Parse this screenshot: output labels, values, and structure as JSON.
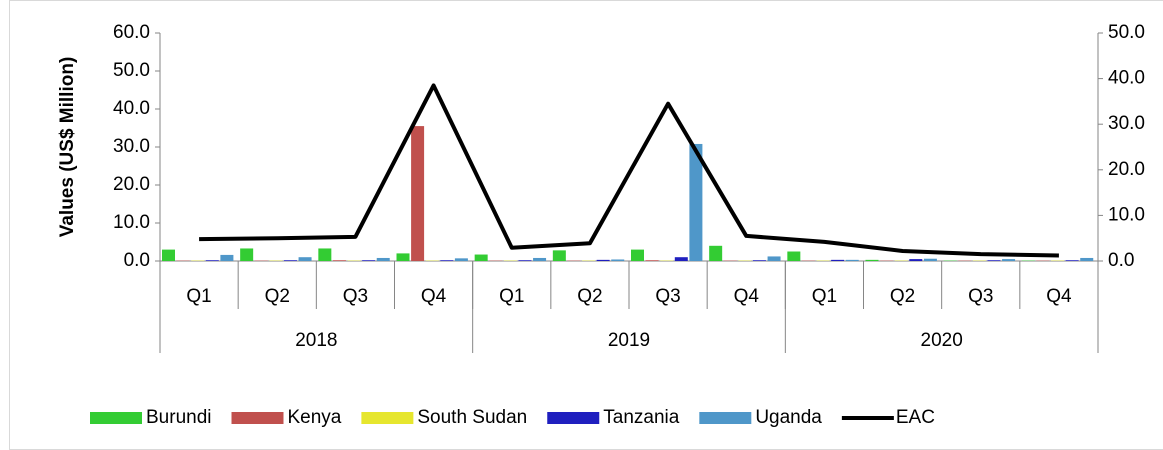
{
  "chart_data": {
    "type": "bar_line",
    "y_label": "Values (US$ Million)",
    "categories": [
      "Q1",
      "Q2",
      "Q3",
      "Q4",
      "Q1",
      "Q2",
      "Q3",
      "Q4",
      "Q1",
      "Q2",
      "Q3",
      "Q4"
    ],
    "category_groups": [
      "2018",
      "2019",
      "2020"
    ],
    "series": [
      {
        "name": "Burundi",
        "color": "#33cc33",
        "type": "bar",
        "values": [
          3.0,
          3.3,
          3.3,
          2.0,
          1.7,
          2.8,
          3.0,
          4.0,
          2.5,
          0.3,
          0.1,
          0.1
        ]
      },
      {
        "name": "Kenya",
        "color": "#c0504d",
        "type": "bar",
        "values": [
          0.1,
          0.1,
          0.2,
          35.5,
          0.1,
          0.1,
          0.2,
          0.1,
          0.1,
          0.1,
          0.1,
          0.1
        ]
      },
      {
        "name": "South Sudan",
        "color": "#e6e62e",
        "type": "bar",
        "values": [
          0.1,
          0.1,
          0.1,
          0.1,
          0.1,
          0.1,
          0.1,
          0.1,
          0.1,
          0.1,
          0.1,
          0.1
        ]
      },
      {
        "name": "Tanzania",
        "color": "#1f1fbf",
        "type": "bar",
        "values": [
          0.2,
          0.2,
          0.2,
          0.2,
          0.2,
          0.3,
          1.0,
          0.2,
          0.3,
          0.5,
          0.2,
          0.2
        ]
      },
      {
        "name": "Uganda",
        "color": "#4f97c9",
        "type": "bar",
        "values": [
          1.6,
          1.0,
          0.8,
          0.7,
          0.8,
          0.4,
          30.8,
          1.2,
          0.3,
          0.6,
          0.5,
          0.8
        ]
      },
      {
        "name": "EAC",
        "color": "#000000",
        "type": "line",
        "axis": "y2",
        "values": [
          4.8,
          5.0,
          5.3,
          38.5,
          2.9,
          3.9,
          34.5,
          5.5,
          4.2,
          2.2,
          1.5,
          1.2
        ]
      }
    ],
    "ylim": [
      0,
      60
    ],
    "yticks": [
      {
        "value": 0,
        "label": "0.0"
      },
      {
        "value": 10,
        "label": "10.0"
      },
      {
        "value": 20,
        "label": "20.0"
      },
      {
        "value": 30,
        "label": "30.0"
      },
      {
        "value": 40,
        "label": "40.0"
      },
      {
        "value": 50,
        "label": "50.0"
      },
      {
        "value": 60,
        "label": "60.0"
      }
    ],
    "y2lim": [
      0,
      50
    ],
    "y2ticks": [
      {
        "value": 0,
        "label": "0.0"
      },
      {
        "value": 10,
        "label": "10.0"
      },
      {
        "value": 20,
        "label": "20.0"
      },
      {
        "value": 30,
        "label": "30.0"
      },
      {
        "value": 40,
        "label": "40.0"
      },
      {
        "value": 50,
        "label": "50.0"
      }
    ],
    "legend": "bottom"
  }
}
